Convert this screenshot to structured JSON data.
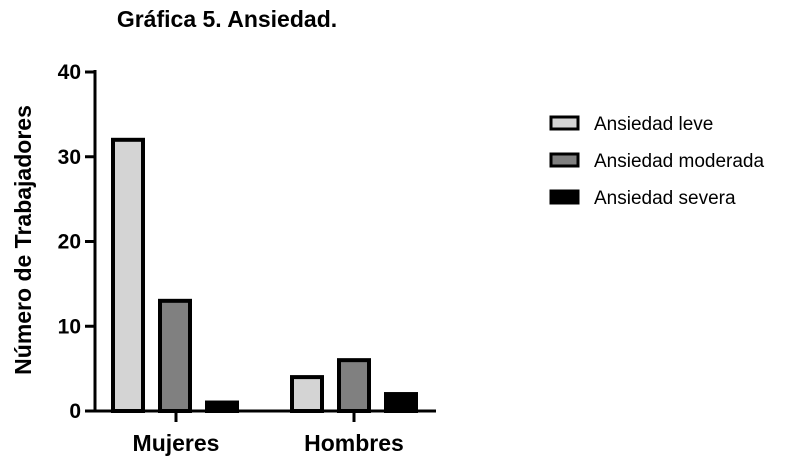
{
  "chart_data": {
    "type": "bar",
    "title": "Gráfica 5. Ansiedad.",
    "ylabel": "Número de Trabajadores",
    "xlabel": "",
    "categories": [
      "Mujeres",
      "Hombres"
    ],
    "series": [
      {
        "name": "Ansiedad leve",
        "values": [
          32,
          4
        ],
        "color": "#d4d4d4"
      },
      {
        "name": "Ansiedad moderada",
        "values": [
          13,
          6
        ],
        "color": "#808080"
      },
      {
        "name": "Ansiedad severa",
        "values": [
          1,
          2
        ],
        "color": "#000000"
      }
    ],
    "ylim": [
      0,
      40
    ],
    "yticks": [
      0,
      10,
      20,
      30,
      40
    ],
    "grid": false,
    "legend": "right"
  }
}
